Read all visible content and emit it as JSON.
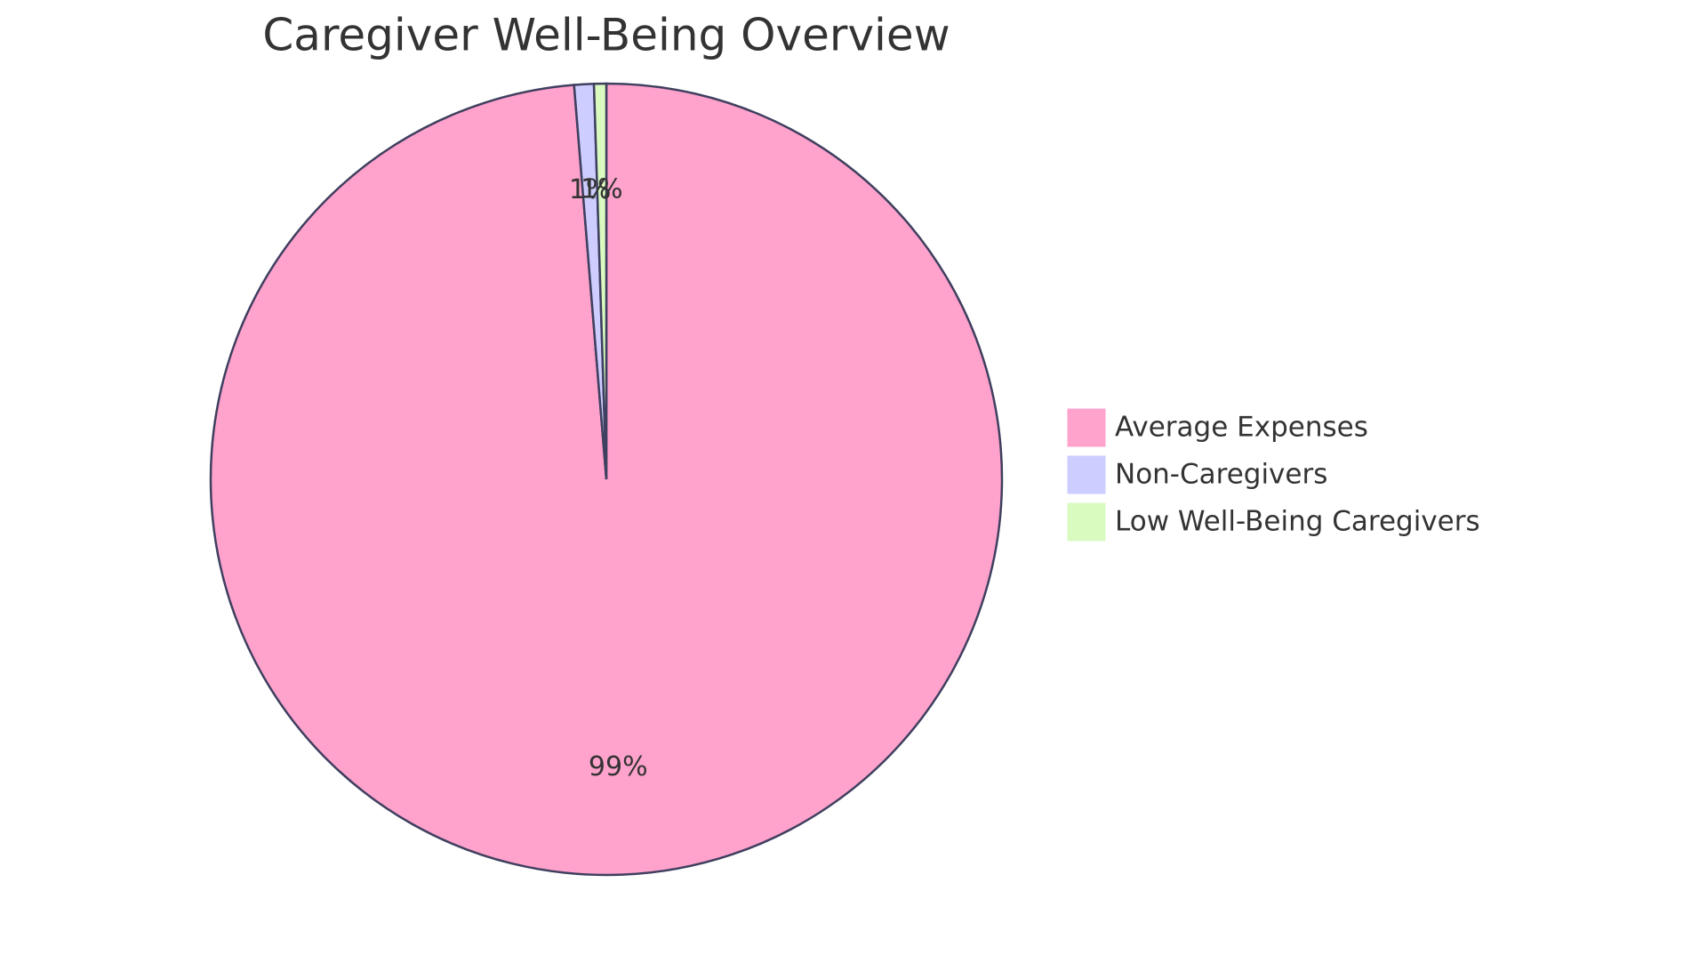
{
  "chart_data": {
    "type": "pie",
    "title": "Caregiver Well-Being Overview",
    "categories": [
      "Average Expenses",
      "Non-Caregivers",
      "Low Well-Being Caregivers"
    ],
    "values": [
      98.7,
      0.8,
      0.5
    ],
    "value_labels": [
      "99%",
      "1%",
      "1%"
    ],
    "colors": [
      "#ffa2cc",
      "#cdcdff",
      "#dafbc0"
    ],
    "legend": "right"
  }
}
